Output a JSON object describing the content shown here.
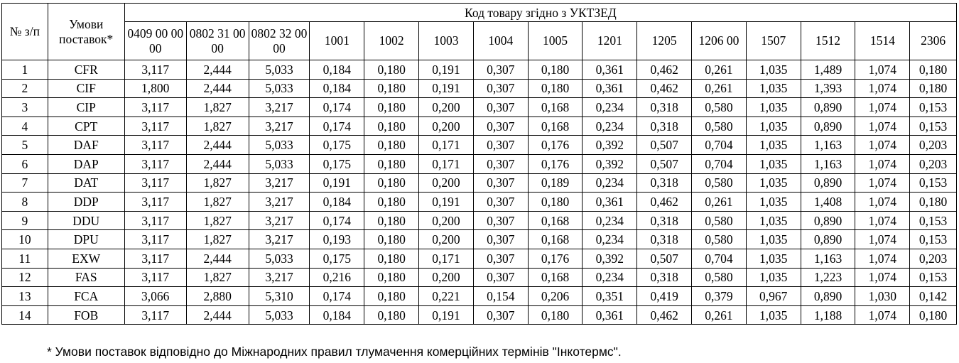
{
  "header": {
    "num_label": "№ з/п",
    "terms_label": "Умови поставок*",
    "group_label": "Код товару згідно з УКТЗЕД",
    "codes": [
      "0409 00 00 00",
      "0802 31 00 00",
      "0802 32 00 00",
      "1001",
      "1002",
      "1003",
      "1004",
      "1005",
      "1201",
      "1205",
      "1206 00",
      "1507",
      "1512",
      "1514",
      "2306"
    ]
  },
  "rows": [
    {
      "num": "1",
      "term": "CFR",
      "values": [
        "3,117",
        "2,444",
        "5,033",
        "0,184",
        "0,180",
        "0,191",
        "0,307",
        "0,180",
        "0,361",
        "0,462",
        "0,261",
        "1,035",
        "1,489",
        "1,074",
        "0,180"
      ]
    },
    {
      "num": "2",
      "term": "CIF",
      "values": [
        "1,800",
        "2,444",
        "5,033",
        "0,184",
        "0,180",
        "0,191",
        "0,307",
        "0,180",
        "0,361",
        "0,462",
        "0,261",
        "1,035",
        "1,393",
        "1,074",
        "0,180"
      ]
    },
    {
      "num": "3",
      "term": "CIP",
      "values": [
        "3,117",
        "1,827",
        "3,217",
        "0,174",
        "0,180",
        "0,200",
        "0,307",
        "0,168",
        "0,234",
        "0,318",
        "0,580",
        "1,035",
        "0,890",
        "1,074",
        "0,153"
      ]
    },
    {
      "num": "4",
      "term": "CPT",
      "values": [
        "3,117",
        "1,827",
        "3,217",
        "0,174",
        "0,180",
        "0,200",
        "0,307",
        "0,168",
        "0,234",
        "0,318",
        "0,580",
        "1,035",
        "0,890",
        "1,074",
        "0,153"
      ]
    },
    {
      "num": "5",
      "term": "DAF",
      "values": [
        "3,117",
        "2,444",
        "5,033",
        "0,175",
        "0,180",
        "0,171",
        "0,307",
        "0,176",
        "0,392",
        "0,507",
        "0,704",
        "1,035",
        "1,163",
        "1,074",
        "0,203"
      ]
    },
    {
      "num": "6",
      "term": "DAP",
      "values": [
        "3,117",
        "2,444",
        "5,033",
        "0,175",
        "0,180",
        "0,171",
        "0,307",
        "0,176",
        "0,392",
        "0,507",
        "0,704",
        "1,035",
        "1,163",
        "1,074",
        "0,203"
      ]
    },
    {
      "num": "7",
      "term": "DAT",
      "values": [
        "3,117",
        "1,827",
        "3,217",
        "0,191",
        "0,180",
        "0,200",
        "0,307",
        "0,189",
        "0,234",
        "0,318",
        "0,580",
        "1,035",
        "0,890",
        "1,074",
        "0,153"
      ]
    },
    {
      "num": "8",
      "term": "DDP",
      "values": [
        "3,117",
        "1,827",
        "3,217",
        "0,184",
        "0,180",
        "0,191",
        "0,307",
        "0,180",
        "0,361",
        "0,462",
        "0,261",
        "1,035",
        "1,408",
        "1,074",
        "0,180"
      ]
    },
    {
      "num": "9",
      "term": "DDU",
      "values": [
        "3,117",
        "1,827",
        "3,217",
        "0,174",
        "0,180",
        "0,200",
        "0,307",
        "0,168",
        "0,234",
        "0,318",
        "0,580",
        "1,035",
        "0,890",
        "1,074",
        "0,153"
      ]
    },
    {
      "num": "10",
      "term": "DPU",
      "values": [
        "3,117",
        "1,827",
        "3,217",
        "0,193",
        "0,180",
        "0,200",
        "0,307",
        "0,168",
        "0,234",
        "0,318",
        "0,580",
        "1,035",
        "0,890",
        "1,074",
        "0,153"
      ]
    },
    {
      "num": "11",
      "term": "EXW",
      "values": [
        "3,117",
        "2,444",
        "5,033",
        "0,175",
        "0,180",
        "0,171",
        "0,307",
        "0,176",
        "0,392",
        "0,507",
        "0,704",
        "1,035",
        "1,163",
        "1,074",
        "0,203"
      ]
    },
    {
      "num": "12",
      "term": "FAS",
      "values": [
        "3,117",
        "1,827",
        "3,217",
        "0,216",
        "0,180",
        "0,200",
        "0,307",
        "0,168",
        "0,234",
        "0,318",
        "0,580",
        "1,035",
        "1,223",
        "1,074",
        "0,153"
      ]
    },
    {
      "num": "13",
      "term": "FCA",
      "values": [
        "3,066",
        "2,880",
        "5,310",
        "0,174",
        "0,180",
        "0,221",
        "0,154",
        "0,206",
        "0,351",
        "0,419",
        "0,379",
        "0,967",
        "0,890",
        "1,030",
        "0,142"
      ]
    },
    {
      "num": "14",
      "term": "FOB",
      "values": [
        "3,117",
        "2,444",
        "5,033",
        "0,184",
        "0,180",
        "0,191",
        "0,307",
        "0,180",
        "0,361",
        "0,462",
        "0,261",
        "1,035",
        "1,188",
        "1,074",
        "0,180"
      ]
    }
  ],
  "footnote": "* Умови поставок відповідно до Міжнародних правил тлумачення комерційних термінів \"Інкотермс\"."
}
